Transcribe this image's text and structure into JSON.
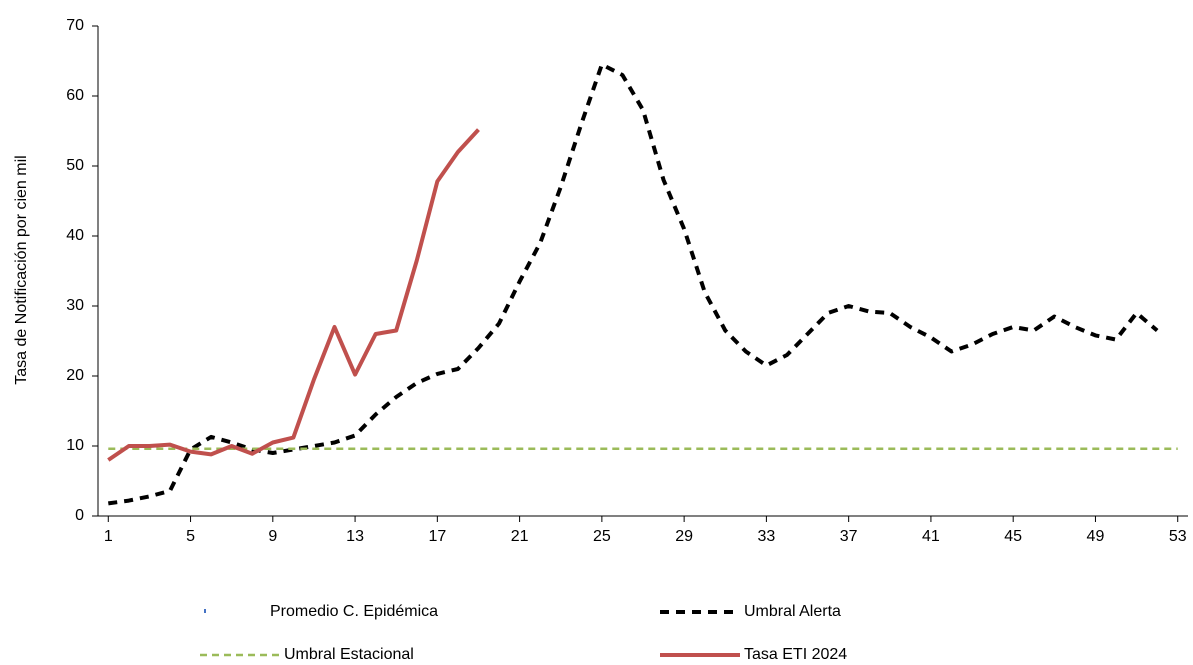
{
  "chart_data": {
    "type": "line",
    "y_label": "Tasa de Notificación por cien mil",
    "x": [
      1,
      2,
      3,
      4,
      5,
      6,
      7,
      8,
      9,
      10,
      11,
      12,
      13,
      14,
      15,
      16,
      17,
      18,
      19,
      20,
      21,
      22,
      23,
      24,
      25,
      26,
      27,
      28,
      29,
      30,
      31,
      32,
      33,
      34,
      35,
      36,
      37,
      38,
      39,
      40,
      41,
      42,
      43,
      44,
      45,
      46,
      47,
      48,
      49,
      50,
      51,
      52,
      53
    ],
    "xlim": [
      0.5,
      53.5
    ],
    "xticks": [
      1,
      5,
      9,
      13,
      17,
      21,
      25,
      29,
      33,
      37,
      41,
      45,
      49,
      53
    ],
    "ylim": [
      0,
      70
    ],
    "yticks": [
      0,
      10,
      20,
      30,
      40,
      50,
      60,
      70
    ],
    "series": [
      {
        "name": "Promedio  C. Epidémica",
        "color": "#4472c4",
        "style": "marker",
        "values": [
          null,
          null,
          null,
          null,
          null,
          null,
          null,
          null,
          null,
          null,
          null,
          null,
          null,
          null,
          null,
          null,
          null,
          null,
          null,
          null,
          null,
          null,
          null,
          null,
          null,
          null,
          null,
          null,
          null,
          null,
          null,
          null,
          null,
          null,
          null,
          null,
          null,
          null,
          null,
          null,
          null,
          null,
          null,
          null,
          null,
          null,
          null,
          null,
          null,
          null,
          null,
          null,
          null
        ]
      },
      {
        "name": "Umbral Alerta",
        "color": "#000000",
        "style": "dashed",
        "values": [
          1.8,
          2.2,
          2.8,
          3.6,
          9.5,
          11.3,
          10.5,
          9.5,
          9,
          9.5,
          10,
          10.5,
          11.5,
          14.5,
          17,
          19,
          20.3,
          21,
          24,
          27.5,
          33.5,
          39,
          47,
          56,
          64.5,
          63,
          58,
          48,
          41,
          32,
          26.5,
          23.5,
          21.5,
          23,
          26,
          29,
          30,
          29.2,
          29,
          27,
          25.5,
          23.5,
          24.5,
          26,
          27,
          26.5,
          28.5,
          27,
          25.8,
          25.2,
          29,
          26.5,
          null
        ]
      },
      {
        "name": "Umbral Estacional",
        "color": "#9bbb59",
        "style": "dotted",
        "values": [
          9.6,
          9.6,
          9.6,
          9.6,
          9.6,
          9.6,
          9.6,
          9.6,
          9.6,
          9.6,
          9.6,
          9.6,
          9.6,
          9.6,
          9.6,
          9.6,
          9.6,
          9.6,
          9.6,
          9.6,
          9.6,
          9.6,
          9.6,
          9.6,
          9.6,
          9.6,
          9.6,
          9.6,
          9.6,
          9.6,
          9.6,
          9.6,
          9.6,
          9.6,
          9.6,
          9.6,
          9.6,
          9.6,
          9.6,
          9.6,
          9.6,
          9.6,
          9.6,
          9.6,
          9.6,
          9.6,
          9.6,
          9.6,
          9.6,
          9.6,
          9.6,
          9.6,
          9.6
        ]
      },
      {
        "name": "Tasa ETI  2024",
        "color": "#c0504d",
        "style": "solid",
        "values": [
          8,
          10,
          10,
          10.2,
          9.2,
          8.8,
          10,
          8.9,
          10.5,
          11.2,
          19.5,
          27,
          20.2,
          26,
          26.5,
          36.5,
          47.8,
          52,
          55.2,
          null,
          null,
          null,
          null,
          null,
          null,
          null,
          null,
          null,
          null,
          null,
          null,
          null,
          null,
          null,
          null,
          null,
          null,
          null,
          null,
          null,
          null,
          null,
          null,
          null,
          null,
          null,
          null,
          null,
          null,
          null,
          null,
          null,
          null
        ]
      }
    ]
  }
}
